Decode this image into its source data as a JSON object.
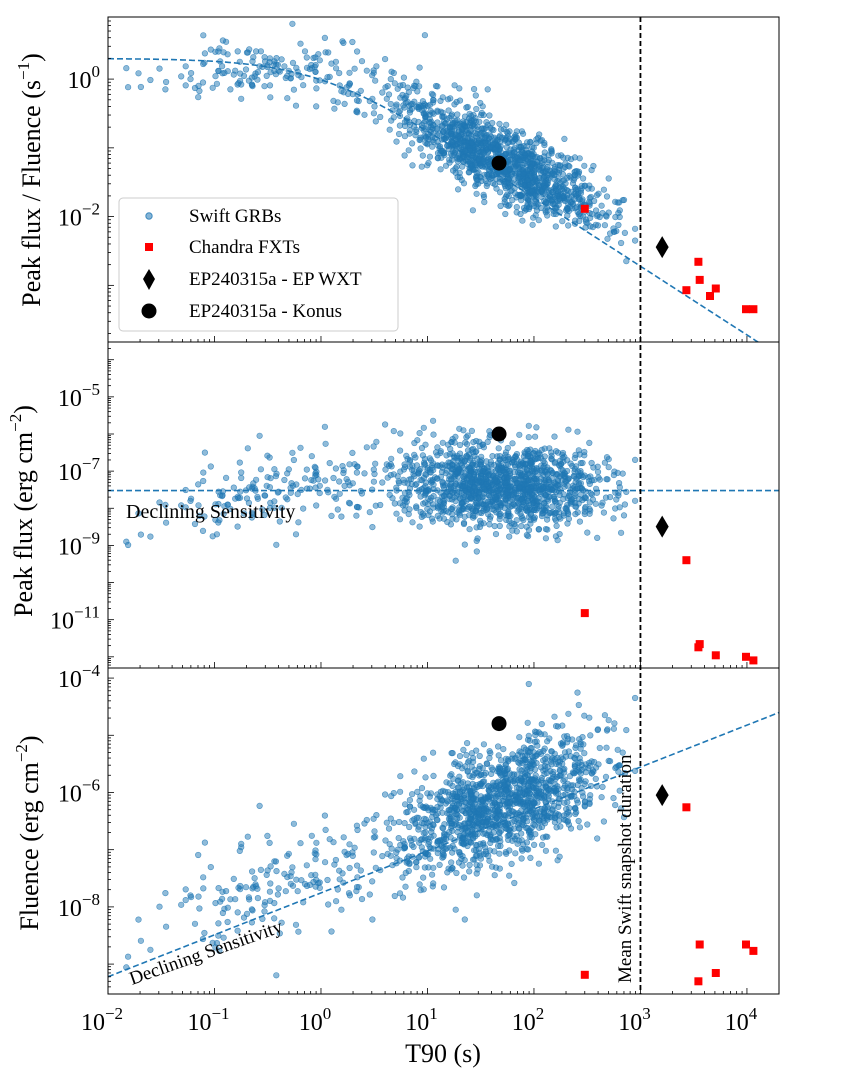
{
  "figure": {
    "xlabel": "T90 (s)",
    "xlim": [
      0.01,
      20000
    ],
    "x_scale": "log",
    "x_ticks": [
      {
        "value": 0.01,
        "base": "10",
        "exp": "−2"
      },
      {
        "value": 0.1,
        "base": "10",
        "exp": "−1"
      },
      {
        "value": 1,
        "base": "10",
        "exp": "0"
      },
      {
        "value": 10,
        "base": "10",
        "exp": "1"
      },
      {
        "value": 100,
        "base": "10",
        "exp": "2"
      },
      {
        "value": 1000,
        "base": "10",
        "exp": "3"
      },
      {
        "value": 10000,
        "base": "10",
        "exp": "4"
      }
    ],
    "vline": {
      "x": 1000,
      "label": "Mean Swift snapshot duration"
    },
    "colors": {
      "swift": "#1f77b4",
      "chandra": "#ff0000",
      "ep": "#000000"
    },
    "legend": {
      "placement": "lower-left of top panel",
      "entries": [
        {
          "label": "Swift GRBs",
          "marker": "circle-small"
        },
        {
          "label": "Chandra FXTs",
          "marker": "square"
        },
        {
          "label": "EP240315a - EP WXT",
          "marker": "diamond"
        },
        {
          "label": "EP240315a - Konus",
          "marker": "circle-large"
        }
      ]
    }
  },
  "chart_data": [
    {
      "type": "scatter",
      "panel": "top",
      "ylabel_main": "Peak flux / Fluence  (s",
      "ylabel_sup": "−1",
      "ylabel_close": ")",
      "ylim": [
        0.00015,
        8
      ],
      "y_scale": "log",
      "y_ticks": [
        {
          "value": 1,
          "base": "10",
          "exp": "0"
        },
        {
          "value": 0.01,
          "base": "10",
          "exp": "−2"
        }
      ],
      "trend_line": "dashed curve: flat near 2 s^-1 below ~1 s, then ~1/T90 decline",
      "series": [
        {
          "name": "Swift GRBs",
          "note": "~1500 points, bulk 0.02–0.5 s^-1 at T90 3–300 s"
        },
        {
          "name": "Chandra FXTs",
          "points": [
            [
              300,
              0.013
            ],
            [
              2700,
              0.00085
            ],
            [
              3500,
              0.0022
            ],
            [
              3600,
              0.0012
            ],
            [
              4500,
              0.0007
            ],
            [
              5100,
              0.0009
            ],
            [
              9800,
              0.00045
            ],
            [
              11500,
              0.00045
            ]
          ]
        },
        {
          "name": "EP240315a - EP WXT",
          "points": [
            [
              1600,
              0.0036
            ]
          ]
        },
        {
          "name": "EP240315a - Konus",
          "points": [
            [
              47,
              0.06
            ]
          ]
        }
      ]
    },
    {
      "type": "scatter",
      "panel": "middle",
      "ylabel_main": "Peak flux (erg cm",
      "ylabel_sup": "−2",
      "ylabel_close": ")",
      "ylim": [
        5e-13,
        0.0003
      ],
      "y_scale": "log",
      "y_ticks": [
        {
          "value": 1e-05,
          "base": "10",
          "exp": "−5"
        },
        {
          "value": 1e-07,
          "base": "10",
          "exp": "−7"
        },
        {
          "value": 1e-09,
          "base": "10",
          "exp": "−9"
        },
        {
          "value": 1e-11,
          "base": "10",
          "exp": "−11"
        }
      ],
      "hline": {
        "y": 3e-08,
        "label": "Declining Sensitivity"
      },
      "series": [
        {
          "name": "Swift GRBs",
          "note": "~1500 points, bulk 3e-8 to 1e-6"
        },
        {
          "name": "Chandra FXTs",
          "points": [
            [
              300,
              1.5e-11
            ],
            [
              2700,
              4e-10
            ],
            [
              3500,
              1.8e-12
            ],
            [
              3600,
              2.2e-12
            ],
            [
              5100,
              1.1e-12
            ],
            [
              9800,
              1e-12
            ],
            [
              11500,
              8e-13
            ]
          ]
        },
        {
          "name": "EP240315a - EP WXT",
          "points": [
            [
              1600,
              3.2e-09
            ]
          ]
        },
        {
          "name": "EP240315a - Konus",
          "points": [
            [
              47,
              1e-06
            ]
          ]
        }
      ]
    },
    {
      "type": "scatter",
      "panel": "bottom",
      "ylabel_main": "Fluence (erg cm",
      "ylabel_sup": "−2",
      "ylabel_close": ")",
      "ylim": [
        3e-10,
        0.00015
      ],
      "y_scale": "log",
      "y_ticks": [
        {
          "value": 0.0001,
          "base": "10",
          "exp": "−4"
        },
        {
          "value": 1e-06,
          "base": "10",
          "exp": "−6"
        },
        {
          "value": 1e-08,
          "base": "10",
          "exp": "−8"
        }
      ],
      "sensitivity_line": {
        "from": [
          0.01,
          6e-10
        ],
        "to": [
          20000,
          2.5e-05
        ],
        "label": "Declining Sensitivity"
      },
      "series": [
        {
          "name": "Swift GRBs",
          "note": "~1500 points, bulk 1e-7 to 1e-5"
        },
        {
          "name": "Chandra FXTs",
          "points": [
            [
              300,
              6.5e-10
            ],
            [
              2700,
              5.5e-07
            ],
            [
              3500,
              5e-10
            ],
            [
              3600,
              2.2e-09
            ],
            [
              5100,
              7e-10
            ],
            [
              9800,
              2.2e-09
            ],
            [
              11500,
              1.7e-09
            ]
          ]
        },
        {
          "name": "EP240315a - EP WXT",
          "points": [
            [
              1600,
              9e-07
            ]
          ]
        },
        {
          "name": "EP240315a - Konus",
          "points": [
            [
              47,
              1.6e-05
            ]
          ]
        }
      ]
    }
  ]
}
